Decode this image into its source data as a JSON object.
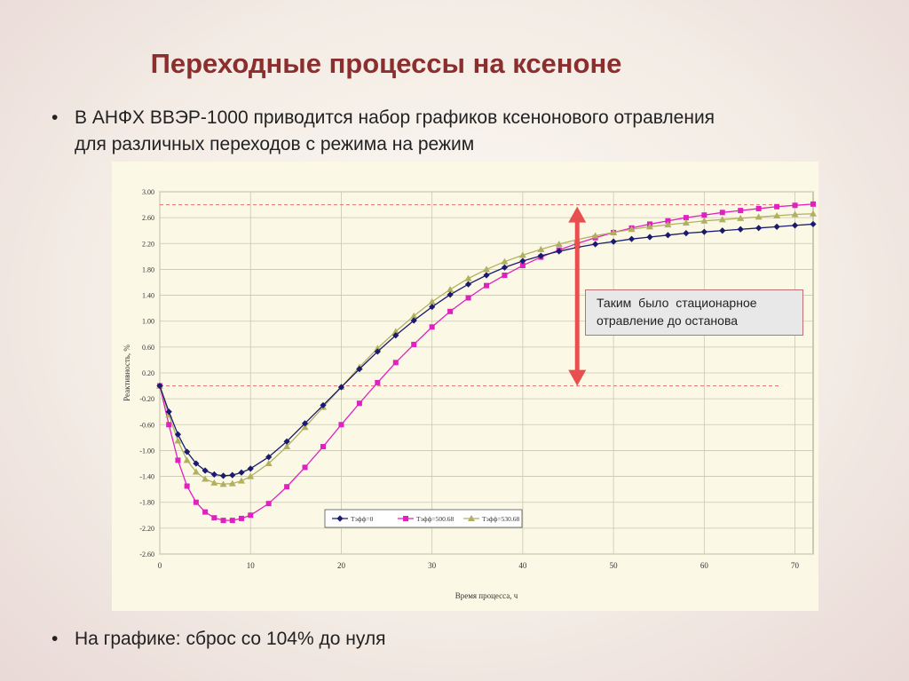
{
  "slide": {
    "title": "Переходные процессы на ксеноне",
    "bullet_char": "•",
    "bullet1_line1": "В АНФХ ВВЭР-1000 приводится набор графиков ксенонового отравления",
    "bullet1_line2": "для различных переходов с режима на режим",
    "bullet2": "На графике: сброс со 104% до нуля"
  },
  "callout": {
    "line1": "Таким было стационарное",
    "line2": "отравление до останова"
  },
  "colors": {
    "title": "#8b2e2e",
    "series_navy": "#1a1a6e",
    "series_magenta": "#e020c0",
    "series_olive": "#b0b060",
    "arrow": "#e85050",
    "dashed_ref": "#e07070",
    "plot_bg": "#fbf9e6",
    "grid": "#c8c8b0"
  },
  "chart_data": {
    "type": "line",
    "xlabel": "Время процесса, ч",
    "ylabel": "Реактивность, %",
    "xlim": [
      0,
      72
    ],
    "ylim": [
      -2.6,
      3.0
    ],
    "x_ticks": [
      "0",
      "10",
      "20",
      "30",
      "40",
      "50",
      "60",
      "70"
    ],
    "x_tick_values": [
      0,
      10,
      20,
      30,
      40,
      50,
      60,
      70
    ],
    "y_ticks": [
      "3.00",
      "2.60",
      "2.20",
      "1.80",
      "1.40",
      "1.00",
      "0.60",
      "0.20",
      "-0.20",
      "-0.60",
      "-1.00",
      "-1.40",
      "-1.80",
      "-2.20",
      "-2.60"
    ],
    "y_tick_values": [
      3.0,
      2.6,
      2.2,
      1.8,
      1.4,
      1.0,
      0.6,
      0.2,
      -0.2,
      -0.6,
      -1.0,
      -1.4,
      -1.8,
      -2.2,
      -2.6
    ],
    "grid": true,
    "legend_position": "bottom-center",
    "reference_lines": [
      2.8,
      0.0
    ],
    "arrow_x": 46,
    "x": [
      0,
      1,
      2,
      3,
      4,
      5,
      6,
      7,
      8,
      9,
      10,
      12,
      14,
      16,
      18,
      20,
      22,
      24,
      26,
      28,
      30,
      32,
      34,
      36,
      38,
      40,
      42,
      44,
      46,
      48,
      50,
      52,
      54,
      56,
      58,
      60,
      62,
      64,
      66,
      68,
      70,
      72
    ],
    "series": [
      {
        "name": "Тэфф=0",
        "marker": "diamond",
        "values": [
          0.0,
          -0.4,
          -0.75,
          -1.02,
          -1.2,
          -1.31,
          -1.37,
          -1.39,
          -1.38,
          -1.34,
          -1.28,
          -1.1,
          -0.86,
          -0.58,
          -0.3,
          -0.02,
          0.26,
          0.53,
          0.78,
          1.01,
          1.22,
          1.41,
          1.57,
          1.71,
          1.83,
          1.93,
          2.01,
          2.08,
          2.14,
          2.19,
          2.23,
          2.27,
          2.3,
          2.33,
          2.36,
          2.38,
          2.4,
          2.42,
          2.44,
          2.46,
          2.48,
          2.5
        ]
      },
      {
        "name": "Тэфф=500.68",
        "marker": "square",
        "values": [
          0.0,
          -0.6,
          -1.15,
          -1.55,
          -1.8,
          -1.95,
          -2.04,
          -2.08,
          -2.08,
          -2.05,
          -2.0,
          -1.82,
          -1.56,
          -1.26,
          -0.94,
          -0.6,
          -0.27,
          0.05,
          0.36,
          0.64,
          0.91,
          1.15,
          1.36,
          1.55,
          1.71,
          1.86,
          1.99,
          2.1,
          2.2,
          2.29,
          2.37,
          2.44,
          2.5,
          2.55,
          2.6,
          2.64,
          2.68,
          2.71,
          2.74,
          2.77,
          2.79,
          2.81
        ]
      },
      {
        "name": "Тэфф=530.68",
        "marker": "triangle",
        "values": [
          0.0,
          -0.45,
          -0.85,
          -1.15,
          -1.33,
          -1.44,
          -1.5,
          -1.52,
          -1.51,
          -1.47,
          -1.4,
          -1.2,
          -0.94,
          -0.64,
          -0.33,
          -0.02,
          0.29,
          0.58,
          0.84,
          1.08,
          1.3,
          1.49,
          1.66,
          1.8,
          1.92,
          2.02,
          2.11,
          2.19,
          2.26,
          2.32,
          2.37,
          2.42,
          2.46,
          2.49,
          2.52,
          2.55,
          2.57,
          2.59,
          2.61,
          2.63,
          2.65,
          2.66
        ]
      }
    ]
  }
}
